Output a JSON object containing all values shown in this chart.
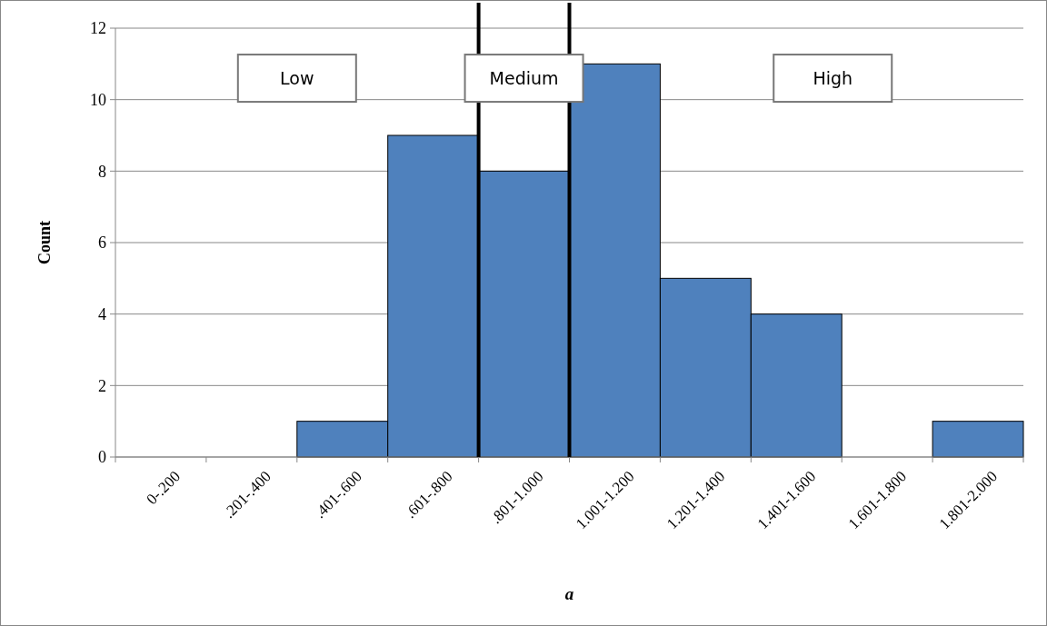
{
  "chart_data": {
    "type": "bar",
    "xlabel": "a",
    "ylabel": "Count",
    "categories": [
      "0-.200",
      ".201-.400",
      ".401-.600",
      ".601-.800",
      ".801-1.000",
      "1.001-1.200",
      "1.201-1.400",
      "1.401-1.600",
      "1.601-1.800",
      "1.801-2.000"
    ],
    "values": [
      0,
      0,
      1,
      9,
      8,
      11,
      5,
      4,
      0,
      1
    ],
    "color": "#4f81bd",
    "ylim": [
      0,
      12
    ],
    "yticks": [
      0,
      2,
      4,
      6,
      8,
      10,
      12
    ],
    "grid": "y",
    "ref_lines": [
      {
        "axis": "x",
        "value": ".801-1.000",
        "color": "#000000"
      },
      {
        "axis": "x",
        "value": "1.001-1.200",
        "color": "#000000"
      }
    ],
    "annotations": [
      "Low",
      "Medium",
      "High"
    ]
  }
}
